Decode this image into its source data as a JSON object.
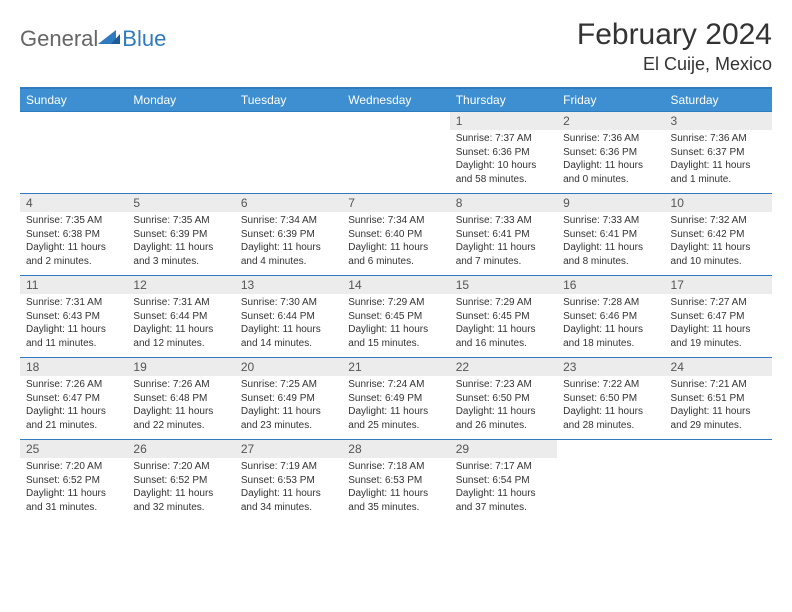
{
  "logo": {
    "general": "General",
    "blue": "Blue"
  },
  "title": "February 2024",
  "location": "El Cuije, Mexico",
  "colors": {
    "header_bg": "#3d8fd1",
    "header_border": "#2f7bbf",
    "daynum_bg": "#ececec",
    "text": "#333333"
  },
  "weekdays": [
    "Sunday",
    "Monday",
    "Tuesday",
    "Wednesday",
    "Thursday",
    "Friday",
    "Saturday"
  ],
  "weeks": [
    [
      {
        "n": "",
        "lines": []
      },
      {
        "n": "",
        "lines": []
      },
      {
        "n": "",
        "lines": []
      },
      {
        "n": "",
        "lines": []
      },
      {
        "n": "1",
        "lines": [
          "Sunrise: 7:37 AM",
          "Sunset: 6:36 PM",
          "Daylight: 10 hours",
          "and 58 minutes."
        ]
      },
      {
        "n": "2",
        "lines": [
          "Sunrise: 7:36 AM",
          "Sunset: 6:36 PM",
          "Daylight: 11 hours",
          "and 0 minutes."
        ]
      },
      {
        "n": "3",
        "lines": [
          "Sunrise: 7:36 AM",
          "Sunset: 6:37 PM",
          "Daylight: 11 hours",
          "and 1 minute."
        ]
      }
    ],
    [
      {
        "n": "4",
        "lines": [
          "Sunrise: 7:35 AM",
          "Sunset: 6:38 PM",
          "Daylight: 11 hours",
          "and 2 minutes."
        ]
      },
      {
        "n": "5",
        "lines": [
          "Sunrise: 7:35 AM",
          "Sunset: 6:39 PM",
          "Daylight: 11 hours",
          "and 3 minutes."
        ]
      },
      {
        "n": "6",
        "lines": [
          "Sunrise: 7:34 AM",
          "Sunset: 6:39 PM",
          "Daylight: 11 hours",
          "and 4 minutes."
        ]
      },
      {
        "n": "7",
        "lines": [
          "Sunrise: 7:34 AM",
          "Sunset: 6:40 PM",
          "Daylight: 11 hours",
          "and 6 minutes."
        ]
      },
      {
        "n": "8",
        "lines": [
          "Sunrise: 7:33 AM",
          "Sunset: 6:41 PM",
          "Daylight: 11 hours",
          "and 7 minutes."
        ]
      },
      {
        "n": "9",
        "lines": [
          "Sunrise: 7:33 AM",
          "Sunset: 6:41 PM",
          "Daylight: 11 hours",
          "and 8 minutes."
        ]
      },
      {
        "n": "10",
        "lines": [
          "Sunrise: 7:32 AM",
          "Sunset: 6:42 PM",
          "Daylight: 11 hours",
          "and 10 minutes."
        ]
      }
    ],
    [
      {
        "n": "11",
        "lines": [
          "Sunrise: 7:31 AM",
          "Sunset: 6:43 PM",
          "Daylight: 11 hours",
          "and 11 minutes."
        ]
      },
      {
        "n": "12",
        "lines": [
          "Sunrise: 7:31 AM",
          "Sunset: 6:44 PM",
          "Daylight: 11 hours",
          "and 12 minutes."
        ]
      },
      {
        "n": "13",
        "lines": [
          "Sunrise: 7:30 AM",
          "Sunset: 6:44 PM",
          "Daylight: 11 hours",
          "and 14 minutes."
        ]
      },
      {
        "n": "14",
        "lines": [
          "Sunrise: 7:29 AM",
          "Sunset: 6:45 PM",
          "Daylight: 11 hours",
          "and 15 minutes."
        ]
      },
      {
        "n": "15",
        "lines": [
          "Sunrise: 7:29 AM",
          "Sunset: 6:45 PM",
          "Daylight: 11 hours",
          "and 16 minutes."
        ]
      },
      {
        "n": "16",
        "lines": [
          "Sunrise: 7:28 AM",
          "Sunset: 6:46 PM",
          "Daylight: 11 hours",
          "and 18 minutes."
        ]
      },
      {
        "n": "17",
        "lines": [
          "Sunrise: 7:27 AM",
          "Sunset: 6:47 PM",
          "Daylight: 11 hours",
          "and 19 minutes."
        ]
      }
    ],
    [
      {
        "n": "18",
        "lines": [
          "Sunrise: 7:26 AM",
          "Sunset: 6:47 PM",
          "Daylight: 11 hours",
          "and 21 minutes."
        ]
      },
      {
        "n": "19",
        "lines": [
          "Sunrise: 7:26 AM",
          "Sunset: 6:48 PM",
          "Daylight: 11 hours",
          "and 22 minutes."
        ]
      },
      {
        "n": "20",
        "lines": [
          "Sunrise: 7:25 AM",
          "Sunset: 6:49 PM",
          "Daylight: 11 hours",
          "and 23 minutes."
        ]
      },
      {
        "n": "21",
        "lines": [
          "Sunrise: 7:24 AM",
          "Sunset: 6:49 PM",
          "Daylight: 11 hours",
          "and 25 minutes."
        ]
      },
      {
        "n": "22",
        "lines": [
          "Sunrise: 7:23 AM",
          "Sunset: 6:50 PM",
          "Daylight: 11 hours",
          "and 26 minutes."
        ]
      },
      {
        "n": "23",
        "lines": [
          "Sunrise: 7:22 AM",
          "Sunset: 6:50 PM",
          "Daylight: 11 hours",
          "and 28 minutes."
        ]
      },
      {
        "n": "24",
        "lines": [
          "Sunrise: 7:21 AM",
          "Sunset: 6:51 PM",
          "Daylight: 11 hours",
          "and 29 minutes."
        ]
      }
    ],
    [
      {
        "n": "25",
        "lines": [
          "Sunrise: 7:20 AM",
          "Sunset: 6:52 PM",
          "Daylight: 11 hours",
          "and 31 minutes."
        ]
      },
      {
        "n": "26",
        "lines": [
          "Sunrise: 7:20 AM",
          "Sunset: 6:52 PM",
          "Daylight: 11 hours",
          "and 32 minutes."
        ]
      },
      {
        "n": "27",
        "lines": [
          "Sunrise: 7:19 AM",
          "Sunset: 6:53 PM",
          "Daylight: 11 hours",
          "and 34 minutes."
        ]
      },
      {
        "n": "28",
        "lines": [
          "Sunrise: 7:18 AM",
          "Sunset: 6:53 PM",
          "Daylight: 11 hours",
          "and 35 minutes."
        ]
      },
      {
        "n": "29",
        "lines": [
          "Sunrise: 7:17 AM",
          "Sunset: 6:54 PM",
          "Daylight: 11 hours",
          "and 37 minutes."
        ]
      },
      {
        "n": "",
        "lines": []
      },
      {
        "n": "",
        "lines": []
      }
    ]
  ]
}
